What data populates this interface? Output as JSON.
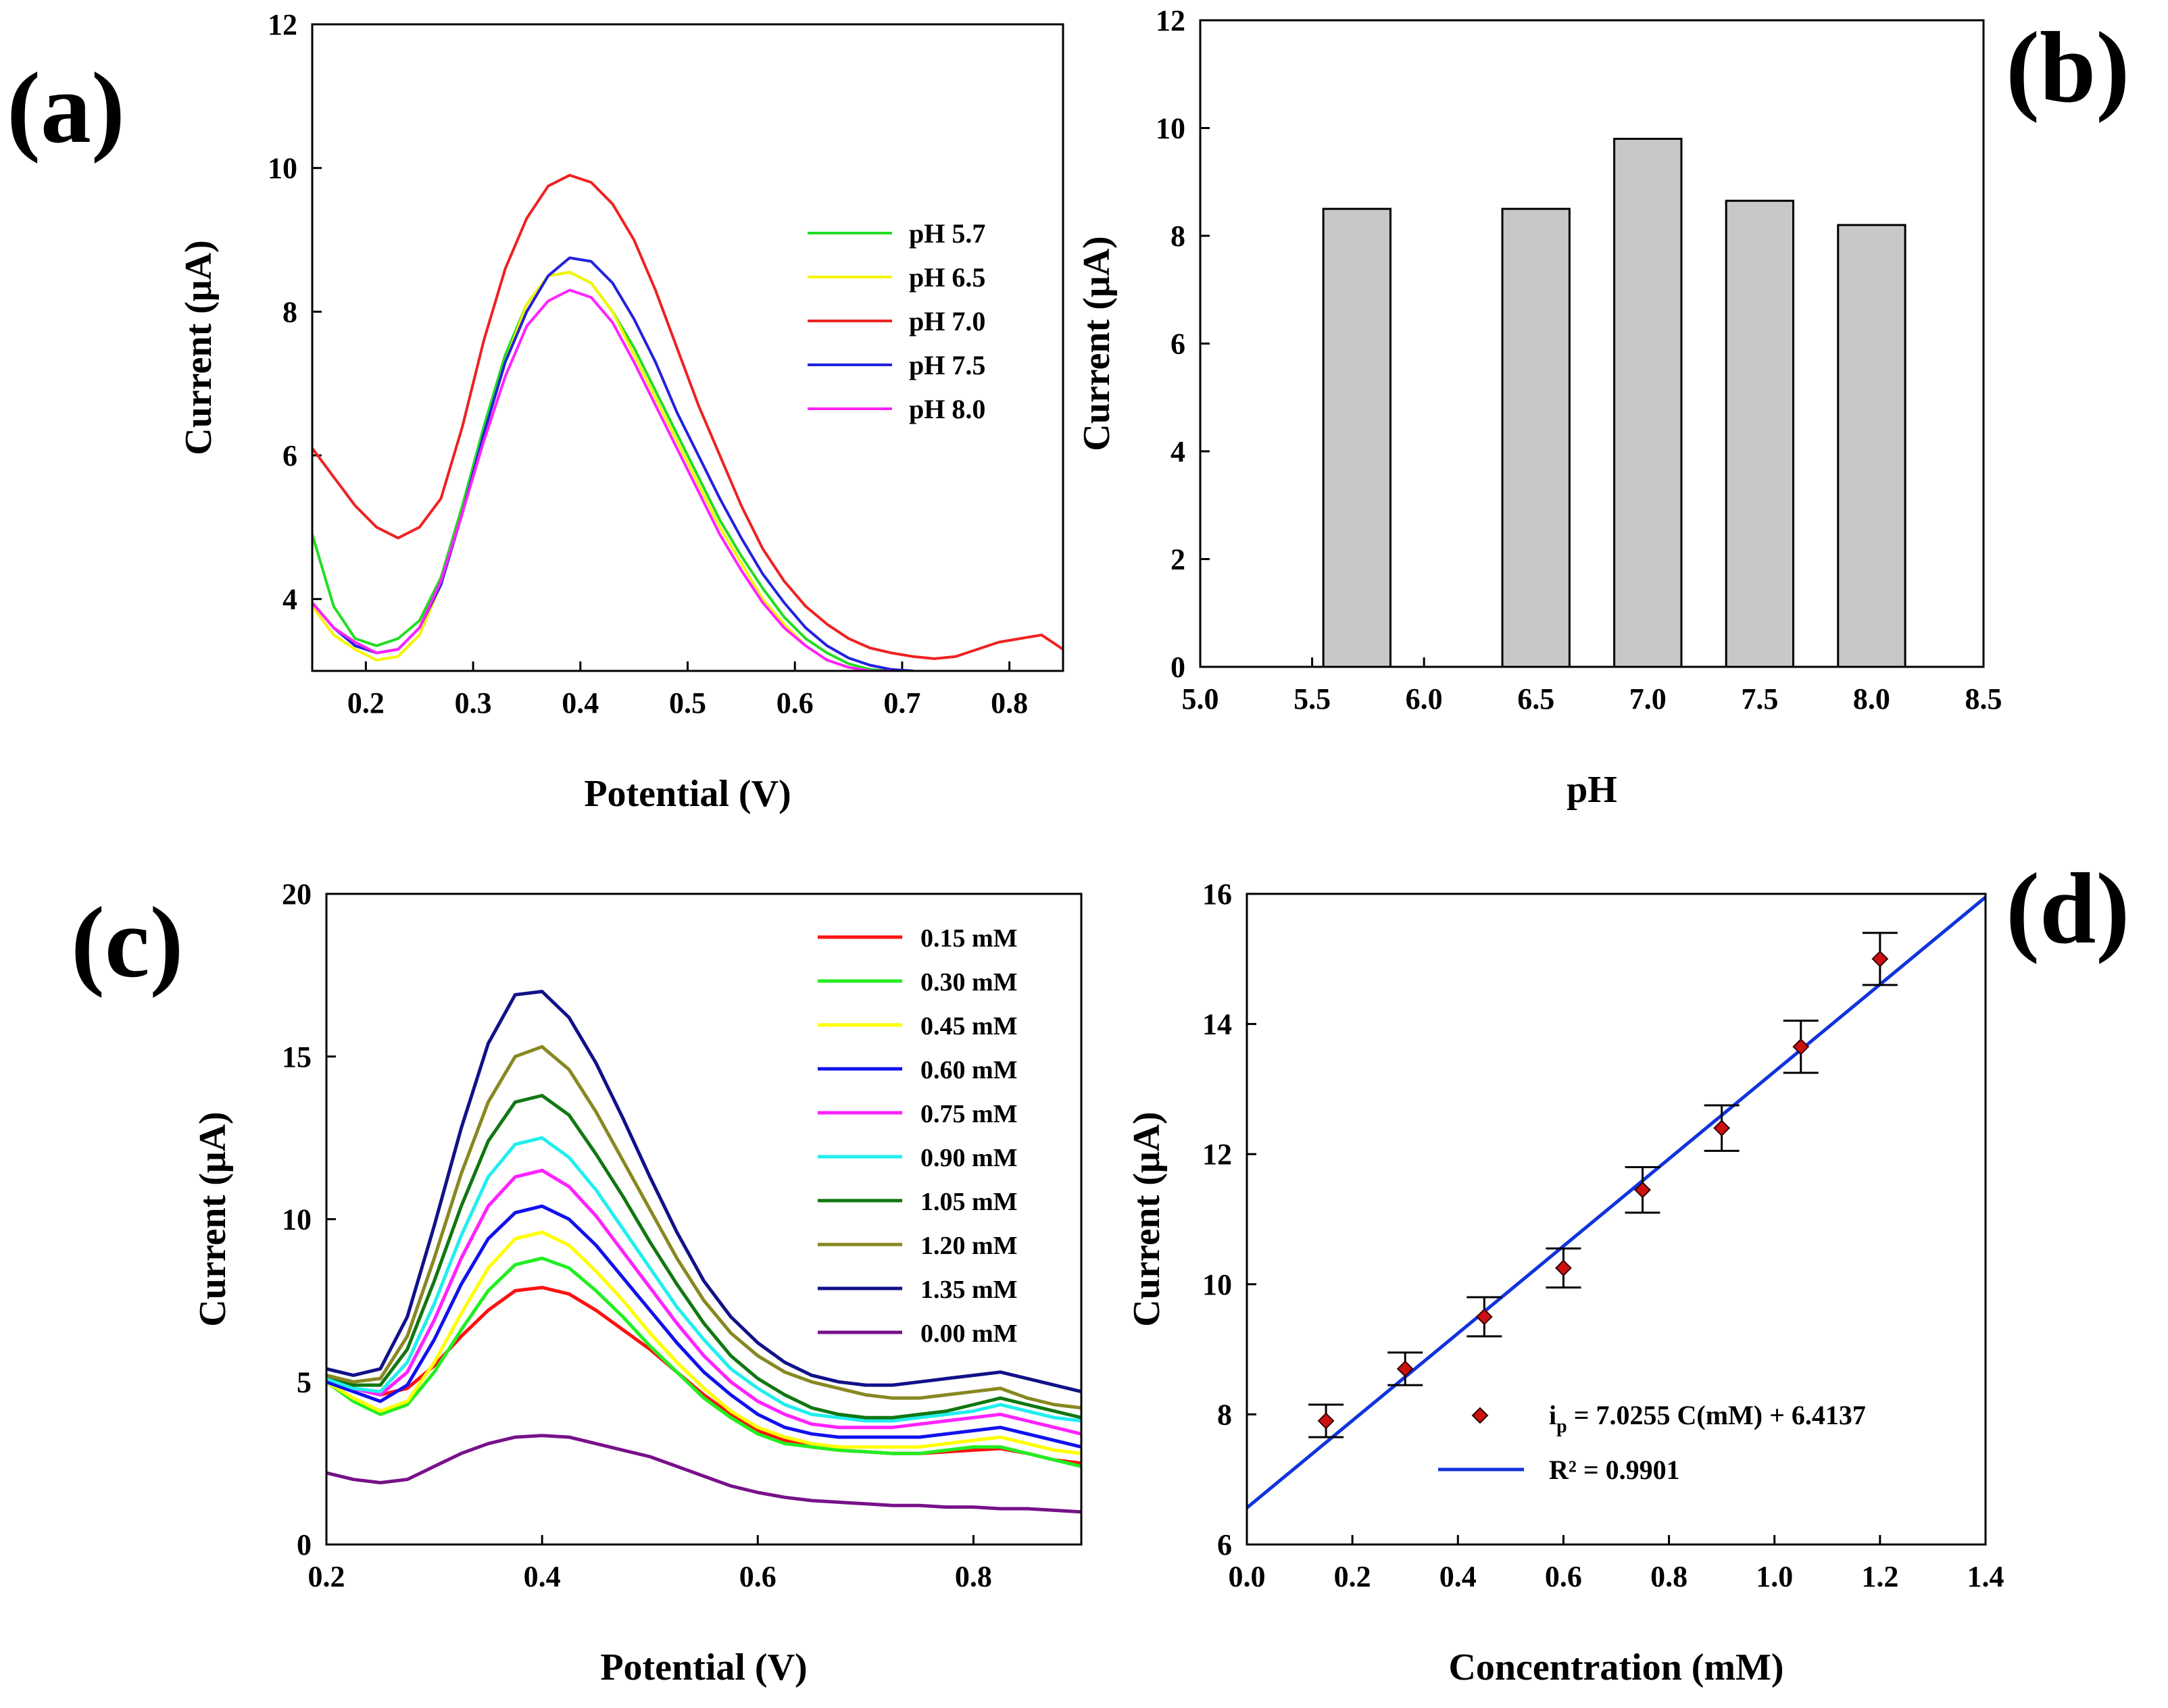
{
  "panels": {
    "a": "(a)",
    "b": "(b)",
    "c": "(c)",
    "d": "(d)"
  },
  "chart_data": [
    {
      "id": "a",
      "type": "line",
      "xlabel": "Potential (V)",
      "ylabel": "Current (μA)",
      "xlim": [
        0.15,
        0.85
      ],
      "ylim": [
        3,
        12
      ],
      "xticks": [
        0.2,
        0.3,
        0.4,
        0.5,
        0.6,
        0.7,
        0.8
      ],
      "yticks": [
        4,
        6,
        8,
        10,
        12
      ],
      "legend_position": "top-right",
      "series": [
        {
          "name": "pH 5.7",
          "color": "#22dd22",
          "x": [
            0.15,
            0.17,
            0.19,
            0.21,
            0.23,
            0.25,
            0.27,
            0.29,
            0.31,
            0.33,
            0.35,
            0.37,
            0.39,
            0.41,
            0.43,
            0.45,
            0.47,
            0.49,
            0.51,
            0.53,
            0.55,
            0.57,
            0.59,
            0.61,
            0.63,
            0.65,
            0.67,
            0.69
          ],
          "y": [
            4.9,
            3.9,
            3.45,
            3.35,
            3.45,
            3.7,
            4.3,
            5.3,
            6.4,
            7.4,
            8.1,
            8.5,
            8.55,
            8.4,
            8.0,
            7.5,
            6.9,
            6.3,
            5.7,
            5.1,
            4.6,
            4.15,
            3.75,
            3.45,
            3.25,
            3.1,
            3.02,
            3.0
          ]
        },
        {
          "name": "pH 6.5",
          "color": "#f5f500",
          "x": [
            0.15,
            0.17,
            0.19,
            0.21,
            0.23,
            0.25,
            0.27,
            0.29,
            0.31,
            0.33,
            0.35,
            0.37,
            0.39,
            0.41,
            0.43,
            0.45,
            0.47,
            0.49,
            0.51,
            0.53,
            0.55,
            0.57,
            0.59,
            0.61,
            0.63,
            0.65,
            0.67
          ],
          "y": [
            3.9,
            3.5,
            3.3,
            3.15,
            3.2,
            3.5,
            4.2,
            5.2,
            6.3,
            7.3,
            8.1,
            8.5,
            8.55,
            8.4,
            8.0,
            7.4,
            6.8,
            6.2,
            5.6,
            5.0,
            4.5,
            4.0,
            3.65,
            3.35,
            3.15,
            3.05,
            3.0
          ]
        },
        {
          "name": "pH 7.0",
          "color": "#ee2222",
          "x": [
            0.15,
            0.17,
            0.19,
            0.21,
            0.23,
            0.25,
            0.27,
            0.29,
            0.31,
            0.33,
            0.35,
            0.37,
            0.39,
            0.41,
            0.43,
            0.45,
            0.47,
            0.49,
            0.51,
            0.53,
            0.55,
            0.57,
            0.59,
            0.61,
            0.63,
            0.65,
            0.67,
            0.69,
            0.71,
            0.73,
            0.75,
            0.77,
            0.79,
            0.81,
            0.83,
            0.85
          ],
          "y": [
            6.1,
            5.7,
            5.3,
            5.0,
            4.85,
            5.0,
            5.4,
            6.4,
            7.6,
            8.6,
            9.3,
            9.75,
            9.9,
            9.8,
            9.5,
            9.0,
            8.3,
            7.5,
            6.7,
            6.0,
            5.3,
            4.7,
            4.25,
            3.9,
            3.65,
            3.45,
            3.32,
            3.25,
            3.2,
            3.17,
            3.2,
            3.3,
            3.4,
            3.45,
            3.5,
            3.3
          ]
        },
        {
          "name": "pH 7.5",
          "color": "#2222dd",
          "x": [
            0.15,
            0.17,
            0.19,
            0.21,
            0.23,
            0.25,
            0.27,
            0.29,
            0.31,
            0.33,
            0.35,
            0.37,
            0.39,
            0.41,
            0.43,
            0.45,
            0.47,
            0.49,
            0.51,
            0.53,
            0.55,
            0.57,
            0.59,
            0.61,
            0.63,
            0.65,
            0.67,
            0.69,
            0.71
          ],
          "y": [
            3.95,
            3.6,
            3.35,
            3.25,
            3.3,
            3.6,
            4.2,
            5.2,
            6.3,
            7.3,
            8.0,
            8.5,
            8.75,
            8.7,
            8.4,
            7.9,
            7.3,
            6.6,
            6.0,
            5.4,
            4.85,
            4.35,
            3.95,
            3.6,
            3.35,
            3.18,
            3.08,
            3.02,
            3.0
          ]
        },
        {
          "name": "pH 8.0",
          "color": "#ff22ff",
          "x": [
            0.15,
            0.17,
            0.19,
            0.21,
            0.23,
            0.25,
            0.27,
            0.29,
            0.31,
            0.33,
            0.35,
            0.37,
            0.39,
            0.41,
            0.43,
            0.45,
            0.47,
            0.49,
            0.51,
            0.53,
            0.55,
            0.57,
            0.59,
            0.61,
            0.63,
            0.65,
            0.67,
            0.69
          ],
          "y": [
            3.95,
            3.6,
            3.4,
            3.25,
            3.3,
            3.6,
            4.25,
            5.2,
            6.2,
            7.1,
            7.8,
            8.15,
            8.3,
            8.2,
            7.85,
            7.3,
            6.7,
            6.1,
            5.5,
            4.9,
            4.4,
            3.95,
            3.6,
            3.35,
            3.15,
            3.05,
            3.0,
            3.0
          ]
        }
      ]
    },
    {
      "id": "b",
      "type": "bar",
      "xlabel": "pH",
      "ylabel": "Current (μA)",
      "xlim": [
        5.0,
        8.5
      ],
      "ylim": [
        0,
        12
      ],
      "xticks": [
        "5.0",
        "5.5",
        "6.0",
        "6.5",
        "7.0",
        "7.5",
        "8.0",
        "8.5"
      ],
      "yticks": [
        0,
        2,
        4,
        6,
        8,
        10,
        12
      ],
      "categories": [
        5.7,
        6.5,
        7.0,
        7.5,
        8.0
      ],
      "values": [
        8.5,
        8.5,
        9.8,
        8.65,
        8.2
      ],
      "bar_color": "#c8c8c8"
    },
    {
      "id": "c",
      "type": "line",
      "xlabel": "Potential (V)",
      "ylabel": "Current (μA)",
      "xlim": [
        0.2,
        0.9
      ],
      "ylim": [
        0,
        20
      ],
      "xticks": [
        0.2,
        0.4,
        0.6,
        0.8
      ],
      "yticks": [
        0,
        5,
        10,
        15,
        20
      ],
      "legend_position": "top-right",
      "x": [
        0.2,
        0.225,
        0.25,
        0.275,
        0.3,
        0.325,
        0.35,
        0.375,
        0.4,
        0.425,
        0.45,
        0.475,
        0.5,
        0.525,
        0.55,
        0.575,
        0.6,
        0.625,
        0.65,
        0.675,
        0.7,
        0.725,
        0.75,
        0.775,
        0.8,
        0.825,
        0.85,
        0.875,
        0.9
      ],
      "series": [
        {
          "name": "0.15 mM",
          "color": "#ff1111",
          "values": [
            5.1,
            4.8,
            4.6,
            4.8,
            5.5,
            6.4,
            7.2,
            7.8,
            7.9,
            7.7,
            7.2,
            6.6,
            6.0,
            5.3,
            4.6,
            4.0,
            3.5,
            3.2,
            3.0,
            2.9,
            2.85,
            2.8,
            2.8,
            2.85,
            2.9,
            2.95,
            2.8,
            2.6,
            2.5
          ]
        },
        {
          "name": "0.30 mM",
          "color": "#22ee22",
          "values": [
            5.0,
            4.4,
            4.0,
            4.3,
            5.3,
            6.6,
            7.8,
            8.6,
            8.8,
            8.5,
            7.8,
            7.0,
            6.1,
            5.3,
            4.5,
            3.9,
            3.4,
            3.1,
            3.0,
            2.9,
            2.85,
            2.8,
            2.8,
            2.9,
            3.0,
            3.0,
            2.8,
            2.6,
            2.4
          ]
        },
        {
          "name": "0.45 mM",
          "color": "#ffff00",
          "values": [
            5.0,
            4.5,
            4.1,
            4.4,
            5.6,
            7.1,
            8.5,
            9.4,
            9.6,
            9.2,
            8.4,
            7.5,
            6.5,
            5.6,
            4.8,
            4.1,
            3.6,
            3.3,
            3.1,
            3.0,
            3.0,
            3.0,
            3.0,
            3.1,
            3.2,
            3.3,
            3.1,
            2.9,
            2.8
          ]
        },
        {
          "name": "0.60 mM",
          "color": "#1111ee",
          "values": [
            5.0,
            4.7,
            4.4,
            4.9,
            6.3,
            8.0,
            9.4,
            10.2,
            10.4,
            10.0,
            9.2,
            8.2,
            7.2,
            6.2,
            5.3,
            4.6,
            4.0,
            3.6,
            3.4,
            3.3,
            3.3,
            3.3,
            3.3,
            3.4,
            3.5,
            3.6,
            3.4,
            3.2,
            3.0
          ]
        },
        {
          "name": "0.75 mM",
          "color": "#ff22ff",
          "values": [
            5.1,
            4.8,
            4.6,
            5.3,
            6.9,
            8.8,
            10.4,
            11.3,
            11.5,
            11.0,
            10.1,
            9.0,
            7.9,
            6.8,
            5.8,
            5.0,
            4.4,
            4.0,
            3.7,
            3.6,
            3.6,
            3.6,
            3.7,
            3.8,
            3.9,
            4.0,
            3.8,
            3.6,
            3.4
          ]
        },
        {
          "name": "0.90 mM",
          "color": "#22eeee",
          "values": [
            5.1,
            4.8,
            4.7,
            5.6,
            7.4,
            9.5,
            11.3,
            12.3,
            12.5,
            11.9,
            10.9,
            9.7,
            8.5,
            7.3,
            6.3,
            5.4,
            4.8,
            4.3,
            4.0,
            3.9,
            3.8,
            3.8,
            3.9,
            4.0,
            4.1,
            4.3,
            4.1,
            3.9,
            3.8
          ]
        },
        {
          "name": "1.05 mM",
          "color": "#117711",
          "values": [
            5.2,
            4.9,
            4.9,
            6.0,
            8.1,
            10.4,
            12.4,
            13.6,
            13.8,
            13.2,
            12.0,
            10.7,
            9.3,
            8.0,
            6.8,
            5.8,
            5.1,
            4.6,
            4.2,
            4.0,
            3.9,
            3.9,
            4.0,
            4.1,
            4.3,
            4.5,
            4.3,
            4.1,
            3.9
          ]
        },
        {
          "name": "1.20 mM",
          "color": "#888822",
          "values": [
            5.2,
            5.0,
            5.1,
            6.4,
            8.8,
            11.4,
            13.6,
            15.0,
            15.3,
            14.6,
            13.3,
            11.8,
            10.3,
            8.8,
            7.5,
            6.5,
            5.8,
            5.3,
            5.0,
            4.8,
            4.6,
            4.5,
            4.5,
            4.6,
            4.7,
            4.8,
            4.5,
            4.3,
            4.2
          ]
        },
        {
          "name": "1.35 mM",
          "color": "#111188",
          "values": [
            5.4,
            5.2,
            5.4,
            7.0,
            9.8,
            12.8,
            15.4,
            16.9,
            17.0,
            16.2,
            14.8,
            13.1,
            11.3,
            9.6,
            8.1,
            7.0,
            6.2,
            5.6,
            5.2,
            5.0,
            4.9,
            4.9,
            5.0,
            5.1,
            5.2,
            5.3,
            5.1,
            4.9,
            4.7
          ]
        },
        {
          "name": "0.00 mM",
          "color": "#771188",
          "values": [
            2.2,
            2.0,
            1.9,
            2.0,
            2.4,
            2.8,
            3.1,
            3.3,
            3.35,
            3.3,
            3.1,
            2.9,
            2.7,
            2.4,
            2.1,
            1.8,
            1.6,
            1.45,
            1.35,
            1.3,
            1.25,
            1.2,
            1.2,
            1.15,
            1.15,
            1.1,
            1.1,
            1.05,
            1.0
          ]
        }
      ]
    },
    {
      "id": "d",
      "type": "scatter",
      "xlabel": "Concentration (mM)",
      "ylabel": "Current (μA)",
      "xlim": [
        0.0,
        1.4
      ],
      "ylim": [
        6,
        16
      ],
      "xticks": [
        "0.0",
        "0.2",
        "0.4",
        "0.6",
        "0.8",
        "1.0",
        "1.2",
        "1.4"
      ],
      "yticks": [
        6,
        8,
        10,
        12,
        14,
        16
      ],
      "x": [
        0.15,
        0.3,
        0.45,
        0.6,
        0.75,
        0.9,
        1.05,
        1.2
      ],
      "y": [
        7.9,
        8.7,
        9.5,
        10.25,
        11.45,
        12.4,
        13.65,
        15.0
      ],
      "error": [
        0.25,
        0.25,
        0.3,
        0.3,
        0.35,
        0.35,
        0.4,
        0.4
      ],
      "fit": {
        "slope": 7.0255,
        "intercept": 6.4137,
        "color": "#1133dd"
      },
      "legend_position": "bottom-right",
      "legend": {
        "marker_label_prefix": "i",
        "marker_label_sub": "p",
        "marker_label_rest": " = 7.0255 C(mM) + 6.4137",
        "line_label": "R² = 0.9901"
      }
    }
  ]
}
